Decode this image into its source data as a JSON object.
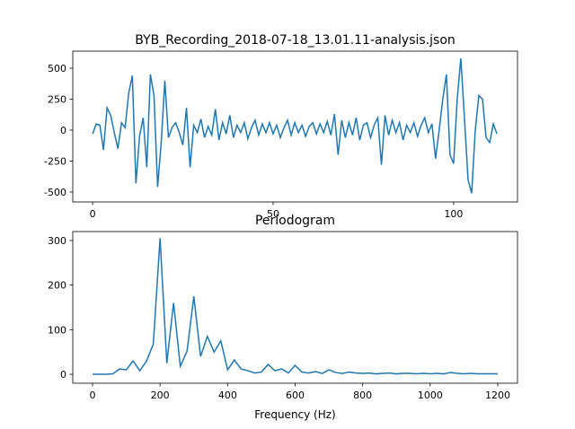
{
  "chart_data": [
    {
      "type": "line",
      "title": "BYB_Recording_2018-07-18_13.01.11-analysis.json",
      "color": "#1f77b4",
      "x": [
        0,
        1,
        2,
        3,
        4,
        5,
        6,
        7,
        8,
        9,
        10,
        11,
        12,
        13,
        14,
        15,
        16,
        17,
        18,
        19,
        20,
        21,
        22,
        23,
        24,
        25,
        26,
        27,
        28,
        29,
        30,
        31,
        32,
        33,
        34,
        35,
        36,
        37,
        38,
        39,
        40,
        41,
        42,
        43,
        44,
        45,
        46,
        47,
        48,
        49,
        50,
        51,
        52,
        53,
        54,
        55,
        56,
        57,
        58,
        59,
        60,
        61,
        62,
        63,
        64,
        65,
        66,
        67,
        68,
        69,
        70,
        71,
        72,
        73,
        74,
        75,
        76,
        77,
        78,
        79,
        80,
        81,
        82,
        83,
        84,
        85,
        86,
        87,
        88,
        89,
        90,
        91,
        92,
        93,
        94,
        95,
        96,
        97,
        98,
        99,
        100,
        101,
        102,
        103,
        104,
        105,
        106,
        107,
        108,
        109,
        110,
        111,
        112
      ],
      "values": [
        -30,
        50,
        40,
        -160,
        180,
        120,
        -20,
        -150,
        60,
        20,
        300,
        440,
        -430,
        -50,
        100,
        -300,
        450,
        280,
        -460,
        -100,
        400,
        -60,
        20,
        60,
        -20,
        -120,
        180,
        -300,
        40,
        -20,
        90,
        -60,
        30,
        -40,
        170,
        -80,
        60,
        -30,
        120,
        -60,
        40,
        -20,
        60,
        -70,
        20,
        80,
        -40,
        50,
        -20,
        60,
        -30,
        40,
        -60,
        20,
        80,
        -40,
        60,
        -20,
        40,
        -50,
        30,
        60,
        -30,
        50,
        -20,
        70,
        -40,
        130,
        -200,
        80,
        -60,
        60,
        -40,
        100,
        -80,
        40,
        60,
        -60,
        40,
        100,
        -280,
        120,
        -40,
        80,
        -20,
        60,
        -80,
        40,
        -20,
        60,
        -50,
        40,
        100,
        -20,
        50,
        -230,
        0,
        250,
        450,
        -200,
        -270,
        250,
        580,
        100,
        -400,
        -510,
        0,
        280,
        250,
        -60,
        -100,
        50,
        -30
      ],
      "xlim": [
        -5.5,
        117.7
      ],
      "ylim": [
        -580,
        638
      ],
      "xticks": [
        0,
        50,
        100
      ],
      "yticks": [
        -500,
        -250,
        0,
        250,
        500
      ]
    },
    {
      "type": "line",
      "title": "Periodogram",
      "x_label": "Frequency (Hz)",
      "color": "#1f77b4",
      "x": [
        0,
        20,
        40,
        60,
        80,
        100,
        120,
        140,
        160,
        180,
        200,
        220,
        240,
        260,
        280,
        300,
        320,
        340,
        360,
        380,
        400,
        420,
        440,
        460,
        480,
        500,
        520,
        540,
        560,
        580,
        600,
        620,
        640,
        660,
        680,
        700,
        720,
        740,
        760,
        780,
        800,
        820,
        840,
        860,
        880,
        900,
        920,
        940,
        960,
        980,
        1000,
        1020,
        1040,
        1060,
        1080,
        1100,
        1120,
        1140,
        1160,
        1180,
        1200
      ],
      "values": [
        0,
        0,
        0,
        1,
        12,
        10,
        30,
        8,
        30,
        68,
        305,
        25,
        160,
        18,
        52,
        175,
        40,
        85,
        50,
        75,
        10,
        32,
        12,
        8,
        3,
        5,
        22,
        8,
        12,
        3,
        20,
        5,
        3,
        6,
        2,
        10,
        4,
        2,
        5,
        3,
        2,
        3,
        1,
        2,
        3,
        1,
        2,
        2,
        1,
        2,
        1,
        2,
        1,
        4,
        2,
        1,
        2,
        1,
        1,
        1,
        1
      ],
      "xlim": [
        -58.5,
        1258.5
      ],
      "ylim": [
        -20,
        320
      ],
      "xticks": [
        0,
        200,
        400,
        600,
        800,
        1000,
        1200
      ],
      "yticks": [
        0,
        100,
        200,
        300
      ]
    }
  ]
}
